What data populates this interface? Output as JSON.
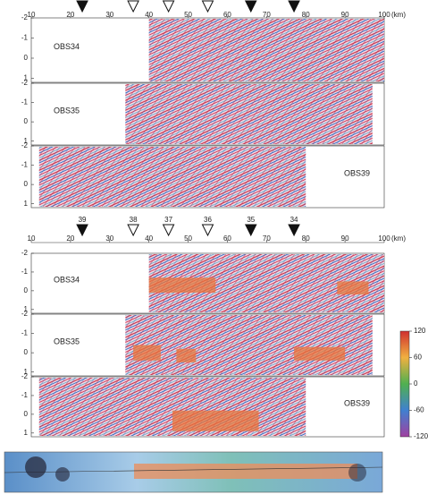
{
  "figure": {
    "xticks": [
      10,
      20,
      30,
      40,
      50,
      60,
      70,
      80,
      90,
      100
    ],
    "xlim": [
      10,
      100
    ],
    "x_unit": "(km)",
    "stations": [
      {
        "label": "39",
        "km": 23,
        "filled": true
      },
      {
        "label": "38",
        "km": 36,
        "filled": false
      },
      {
        "label": "37",
        "km": 45,
        "filled": false
      },
      {
        "label": "36",
        "km": 55,
        "filled": false
      },
      {
        "label": "35",
        "km": 66,
        "filled": true
      },
      {
        "label": "34",
        "km": 77,
        "filled": true
      }
    ],
    "ylim": [
      -2,
      1.2
    ],
    "yticks": [
      -2,
      -1,
      0,
      1
    ],
    "panels": [
      {
        "label": "OBS34",
        "range": [
          40,
          100
        ],
        "highlights": [
          [
            40,
            57,
            -0.7,
            0.1
          ],
          [
            88,
            96,
            -0.5,
            0.2
          ]
        ]
      },
      {
        "label": "OBS35",
        "range": [
          34,
          97
        ],
        "highlights": [
          [
            36,
            43,
            -0.4,
            0.4
          ],
          [
            47,
            52,
            -0.2,
            0.5
          ],
          [
            77,
            90,
            -0.3,
            0.4
          ]
        ]
      },
      {
        "label": "OBS39",
        "range": [
          12,
          80
        ],
        "highlights": [
          [
            46,
            68,
            -0.2,
            0.9
          ]
        ]
      }
    ],
    "colorbar": {
      "ticks": [
        120,
        60,
        0,
        -60,
        -120
      ]
    }
  }
}
